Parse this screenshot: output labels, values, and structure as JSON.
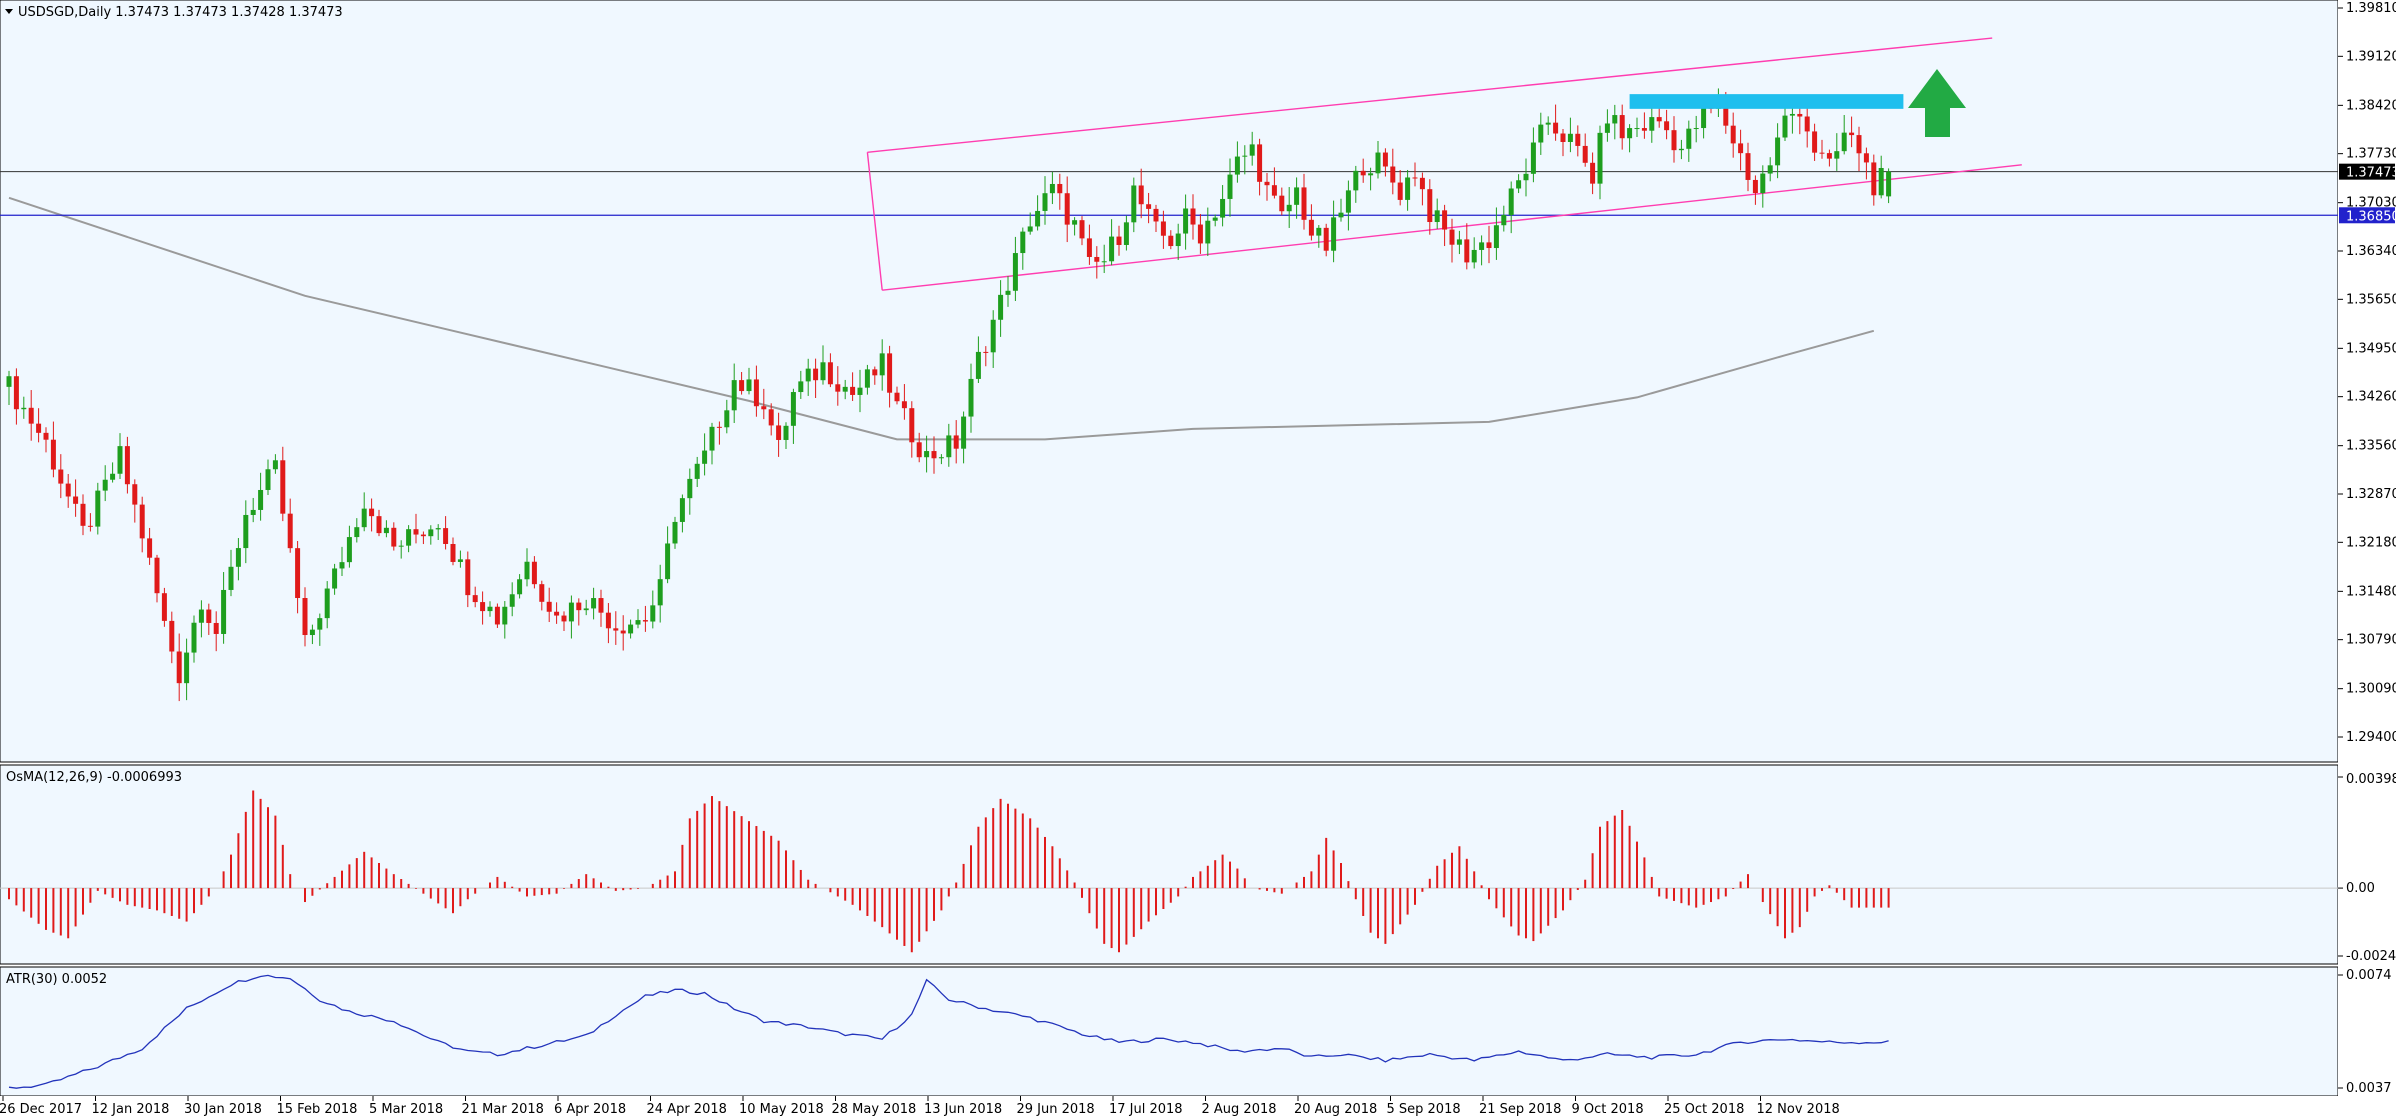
{
  "header": {
    "symbol_label": "USDSGD,Daily  1.37473 1.37473 1.37428 1.37473"
  },
  "indicators": {
    "osma_label": "OsMA(12,26,9) -0.0006993",
    "atr_label": "ATR(30) 0.0052"
  },
  "colors": {
    "background": "#f0f8ff",
    "bull": "#1e9e1e",
    "bear": "#e01a1a",
    "channel": "#ff3db0",
    "zone": "#1fbfee",
    "arrow": "#22aa44",
    "ma": "#9a9a9a",
    "support": "#2222cc",
    "price_line": "#333333",
    "atr": "#2233bb",
    "osma": "#e01a1a"
  },
  "chart_data": [
    {
      "type": "candlestick",
      "title": "USDSGD,Daily",
      "ohlc_last": {
        "open": 1.37473,
        "high": 1.37473,
        "low": 1.37428,
        "close": 1.37473
      },
      "x_tick_labels": [
        "26 Dec 2017",
        "12 Jan 2018",
        "30 Jan 2018",
        "15 Feb 2018",
        "5 Mar 2018",
        "21 Mar 2018",
        "6 Apr 2018",
        "24 Apr 2018",
        "10 May 2018",
        "28 May 2018",
        "13 Jun 2018",
        "29 Jun 2018",
        "17 Jul 2018",
        "2 Aug 2018",
        "20 Aug 2018",
        "5 Sep 2018",
        "21 Sep 2018",
        "9 Oct 2018",
        "25 Oct 2018",
        "12 Nov 2018"
      ],
      "y_tick_labels": [
        "1.39810",
        "1.39120",
        "1.38420",
        "1.37730",
        "1.37030",
        "1.36340",
        "1.35650",
        "1.34950",
        "1.34260",
        "1.33560",
        "1.32870",
        "1.32180",
        "1.31480",
        "1.30790",
        "1.30090",
        "1.29400"
      ],
      "ylim": [
        1.29,
        1.3981
      ],
      "current_price": "1.37473",
      "support_level": "1.36850",
      "close_path": [
        [
          0,
          1.344
        ],
        [
          5,
          1.336
        ],
        [
          10,
          1.323
        ],
        [
          15,
          1.334
        ],
        [
          18,
          1.323
        ],
        [
          21,
          1.31
        ],
        [
          23,
          1.303
        ],
        [
          26,
          1.314
        ],
        [
          28,
          1.309
        ],
        [
          32,
          1.326
        ],
        [
          36,
          1.332
        ],
        [
          38,
          1.32
        ],
        [
          40,
          1.307
        ],
        [
          44,
          1.317
        ],
        [
          48,
          1.328
        ],
        [
          52,
          1.321
        ],
        [
          58,
          1.325
        ],
        [
          62,
          1.316
        ],
        [
          66,
          1.311
        ],
        [
          70,
          1.319
        ],
        [
          74,
          1.311
        ],
        [
          78,
          1.314
        ],
        [
          82,
          1.31
        ],
        [
          86,
          1.311
        ],
        [
          88,
          1.315
        ],
        [
          90,
          1.326
        ],
        [
          94,
          1.334
        ],
        [
          98,
          1.345
        ],
        [
          102,
          1.342
        ],
        [
          104,
          1.335
        ],
        [
          106,
          1.343
        ],
        [
          110,
          1.347
        ],
        [
          114,
          1.343
        ],
        [
          118,
          1.347
        ],
        [
          120,
          1.341
        ],
        [
          124,
          1.334
        ],
        [
          128,
          1.336
        ],
        [
          131,
          1.348
        ],
        [
          134,
          1.356
        ],
        [
          138,
          1.368
        ],
        [
          141,
          1.372
        ],
        [
          144,
          1.367
        ],
        [
          146,
          1.361
        ],
        [
          148,
          1.362
        ],
        [
          150,
          1.366
        ],
        [
          152,
          1.372
        ],
        [
          155,
          1.366
        ],
        [
          157,
          1.365
        ],
        [
          159,
          1.368
        ],
        [
          161,
          1.366
        ],
        [
          164,
          1.371
        ],
        [
          166,
          1.376
        ],
        [
          168,
          1.378
        ],
        [
          170,
          1.372
        ],
        [
          172,
          1.368
        ],
        [
          174,
          1.372
        ],
        [
          176,
          1.366
        ],
        [
          178,
          1.364
        ],
        [
          180,
          1.369
        ],
        [
          183,
          1.376
        ],
        [
          185,
          1.376
        ],
        [
          188,
          1.372
        ],
        [
          190,
          1.375
        ],
        [
          192,
          1.369
        ],
        [
          194,
          1.366
        ],
        [
          197,
          1.363
        ],
        [
          200,
          1.365
        ],
        [
          204,
          1.373
        ],
        [
          208,
          1.382
        ],
        [
          211,
          1.379
        ],
        [
          214,
          1.374
        ],
        [
          216,
          1.383
        ],
        [
          218,
          1.38
        ],
        [
          220,
          1.381
        ],
        [
          223,
          1.382
        ],
        [
          226,
          1.378
        ],
        [
          229,
          1.383
        ],
        [
          231,
          1.384
        ],
        [
          234,
          1.377
        ],
        [
          236,
          1.372
        ],
        [
          238,
          1.376
        ],
        [
          240,
          1.382
        ],
        [
          242,
          1.384
        ],
        [
          244,
          1.378
        ],
        [
          246,
          1.375
        ],
        [
          248,
          1.38
        ],
        [
          250,
          1.378
        ],
        [
          252,
          1.373
        ],
        [
          254,
          1.374
        ]
      ],
      "series": [
        {
          "name": "",
          "note": "moving average line (gray)",
          "points": [
            [
              0,
              1.371
            ],
            [
              20,
              1.364
            ],
            [
              40,
              1.357
            ],
            [
              60,
              1.352
            ],
            [
              80,
              1.347
            ],
            [
              100,
              1.342
            ],
            [
              120,
              1.3365
            ],
            [
              140,
              1.3365
            ],
            [
              160,
              1.338
            ],
            [
              180,
              1.3385
            ],
            [
              200,
              1.339
            ],
            [
              220,
              1.3425
            ],
            [
              240,
              1.3485
            ],
            [
              252,
              1.352
            ]
          ]
        }
      ],
      "annotations": {
        "channel_upper": [
          [
            116,
            1.3775
          ],
          [
            268,
            1.3938
          ]
        ],
        "channel_lower": [
          [
            118,
            1.3578
          ],
          [
            272,
            1.3757
          ]
        ],
        "resistance_zone": {
          "x0": 219,
          "x1": 256,
          "y_top": 1.3858,
          "y_bottom": 1.3837
        },
        "arrow": "up"
      }
    },
    {
      "type": "bar",
      "title": "OsMA(12,26,9) -0.0006993",
      "y_tick_labels": [
        "0.003983",
        "0.00",
        "-0.002435"
      ],
      "ylim": [
        -0.002435,
        0.003983
      ],
      "values_path": [
        [
          0,
          -0.0004
        ],
        [
          5,
          -0.0015
        ],
        [
          8,
          -0.0018
        ],
        [
          12,
          -0.0001
        ],
        [
          16,
          -0.0006
        ],
        [
          20,
          -0.0008
        ],
        [
          24,
          -0.0012
        ],
        [
          28,
          0.0
        ],
        [
          30,
          0.0012
        ],
        [
          33,
          0.0035
        ],
        [
          36,
          0.0026
        ],
        [
          38,
          0.0005
        ],
        [
          40,
          -0.0005
        ],
        [
          44,
          0.0004
        ],
        [
          48,
          0.0013
        ],
        [
          52,
          0.0005
        ],
        [
          56,
          -0.0002
        ],
        [
          60,
          -0.0009
        ],
        [
          62,
          -0.0004
        ],
        [
          66,
          0.0004
        ],
        [
          70,
          -0.0003
        ],
        [
          74,
          -0.0002
        ],
        [
          78,
          0.0005
        ],
        [
          82,
          -0.0001
        ],
        [
          86,
          0.0
        ],
        [
          90,
          0.0006
        ],
        [
          92,
          0.0025
        ],
        [
          95,
          0.0033
        ],
        [
          100,
          0.0024
        ],
        [
          104,
          0.0017
        ],
        [
          108,
          0.0003
        ],
        [
          110,
          0.0
        ],
        [
          114,
          -0.0006
        ],
        [
          118,
          -0.0014
        ],
        [
          122,
          -0.0023
        ],
        [
          126,
          -0.0008
        ],
        [
          128,
          0.0002
        ],
        [
          131,
          0.0022
        ],
        [
          134,
          0.0032
        ],
        [
          138,
          0.0025
        ],
        [
          141,
          0.0015
        ],
        [
          144,
          0.0002
        ],
        [
          146,
          -0.0009
        ],
        [
          148,
          -0.002
        ],
        [
          150,
          -0.0023
        ],
        [
          154,
          -0.0012
        ],
        [
          158,
          -0.0003
        ],
        [
          160,
          0.0004
        ],
        [
          164,
          0.0012
        ],
        [
          166,
          0.0007
        ],
        [
          168,
          0.0
        ],
        [
          172,
          -0.0002
        ],
        [
          176,
          0.0006
        ],
        [
          178,
          0.0018
        ],
        [
          180,
          0.0009
        ],
        [
          182,
          -0.0004
        ],
        [
          184,
          -0.0016
        ],
        [
          186,
          -0.002
        ],
        [
          190,
          -0.0006
        ],
        [
          193,
          0.0008
        ],
        [
          196,
          0.0015
        ],
        [
          198,
          0.0006
        ],
        [
          200,
          -0.0004
        ],
        [
          204,
          -0.0017
        ],
        [
          206,
          -0.0019
        ],
        [
          210,
          -0.0008
        ],
        [
          213,
          0.0003
        ],
        [
          215,
          0.0022
        ],
        [
          218,
          0.0028
        ],
        [
          221,
          0.0011
        ],
        [
          223,
          -0.0003
        ],
        [
          228,
          -0.0007
        ],
        [
          232,
          -0.0003
        ],
        [
          235,
          0.0005
        ],
        [
          237,
          -0.0005
        ],
        [
          240,
          -0.0018
        ],
        [
          242,
          -0.0014
        ],
        [
          244,
          -0.0003
        ],
        [
          246,
          0.0001
        ],
        [
          249,
          -0.0007
        ],
        [
          253,
          -0.0007
        ]
      ]
    },
    {
      "type": "line",
      "title": "ATR(30) 0.0052",
      "y_tick_labels": [
        "0.0074",
        "0.0037"
      ],
      "ylim": [
        0.0037,
        0.0074
      ],
      "values_path": [
        [
          0,
          0.0037
        ],
        [
          5,
          0.0038
        ],
        [
          12,
          0.0044
        ],
        [
          18,
          0.005
        ],
        [
          24,
          0.0063
        ],
        [
          30,
          0.0071
        ],
        [
          34,
          0.0074
        ],
        [
          38,
          0.0073
        ],
        [
          42,
          0.0066
        ],
        [
          46,
          0.0062
        ],
        [
          52,
          0.0059
        ],
        [
          58,
          0.0052
        ],
        [
          62,
          0.0049
        ],
        [
          66,
          0.0048
        ],
        [
          72,
          0.0051
        ],
        [
          78,
          0.0054
        ],
        [
          82,
          0.0061
        ],
        [
          86,
          0.0067
        ],
        [
          90,
          0.0069
        ],
        [
          94,
          0.0068
        ],
        [
          98,
          0.0063
        ],
        [
          102,
          0.0059
        ],
        [
          108,
          0.0057
        ],
        [
          112,
          0.0055
        ],
        [
          118,
          0.0053
        ],
        [
          122,
          0.0061
        ],
        [
          124,
          0.0072
        ],
        [
          127,
          0.0066
        ],
        [
          132,
          0.0063
        ],
        [
          138,
          0.006
        ],
        [
          142,
          0.0057
        ],
        [
          146,
          0.0054
        ],
        [
          150,
          0.0052
        ],
        [
          156,
          0.0053
        ],
        [
          160,
          0.0052
        ],
        [
          166,
          0.0049
        ],
        [
          172,
          0.005
        ],
        [
          176,
          0.0047
        ],
        [
          180,
          0.0048
        ],
        [
          186,
          0.0046
        ],
        [
          192,
          0.0048
        ],
        [
          198,
          0.0046
        ],
        [
          204,
          0.0049
        ],
        [
          210,
          0.0046
        ],
        [
          216,
          0.0048
        ],
        [
          222,
          0.0047
        ],
        [
          228,
          0.0048
        ],
        [
          234,
          0.0052
        ],
        [
          240,
          0.0053
        ],
        [
          246,
          0.0052
        ],
        [
          252,
          0.0052
        ]
      ]
    }
  ]
}
